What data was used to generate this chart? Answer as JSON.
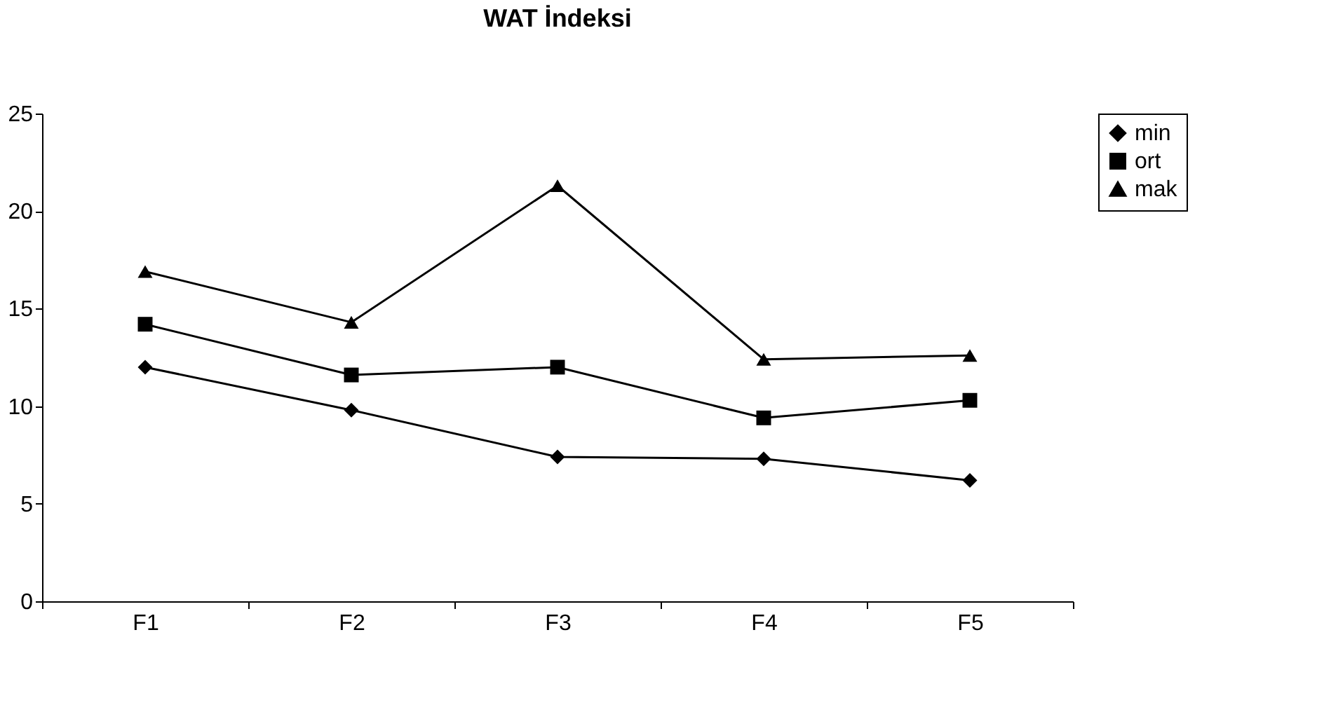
{
  "chart_data": {
    "type": "line",
    "title": "WAT İndeksi",
    "categories": [
      "F1",
      "F2",
      "F3",
      "F4",
      "F5"
    ],
    "series": [
      {
        "name": "min",
        "color": "#000000",
        "marker": "diamond",
        "values": [
          12.0,
          9.8,
          7.4,
          7.3,
          6.2
        ]
      },
      {
        "name": "ort",
        "color": "#000000",
        "marker": "square",
        "values": [
          14.2,
          11.6,
          12.0,
          9.4,
          10.3
        ]
      },
      {
        "name": "mak",
        "color": "#000000",
        "marker": "triangle",
        "values": [
          16.9,
          14.3,
          21.3,
          12.4,
          12.6
        ]
      }
    ],
    "ylim": [
      0,
      25
    ],
    "yticks": [
      0,
      5,
      10,
      15,
      20,
      25
    ],
    "grid": false,
    "legend": "right",
    "line_style": "solid"
  }
}
